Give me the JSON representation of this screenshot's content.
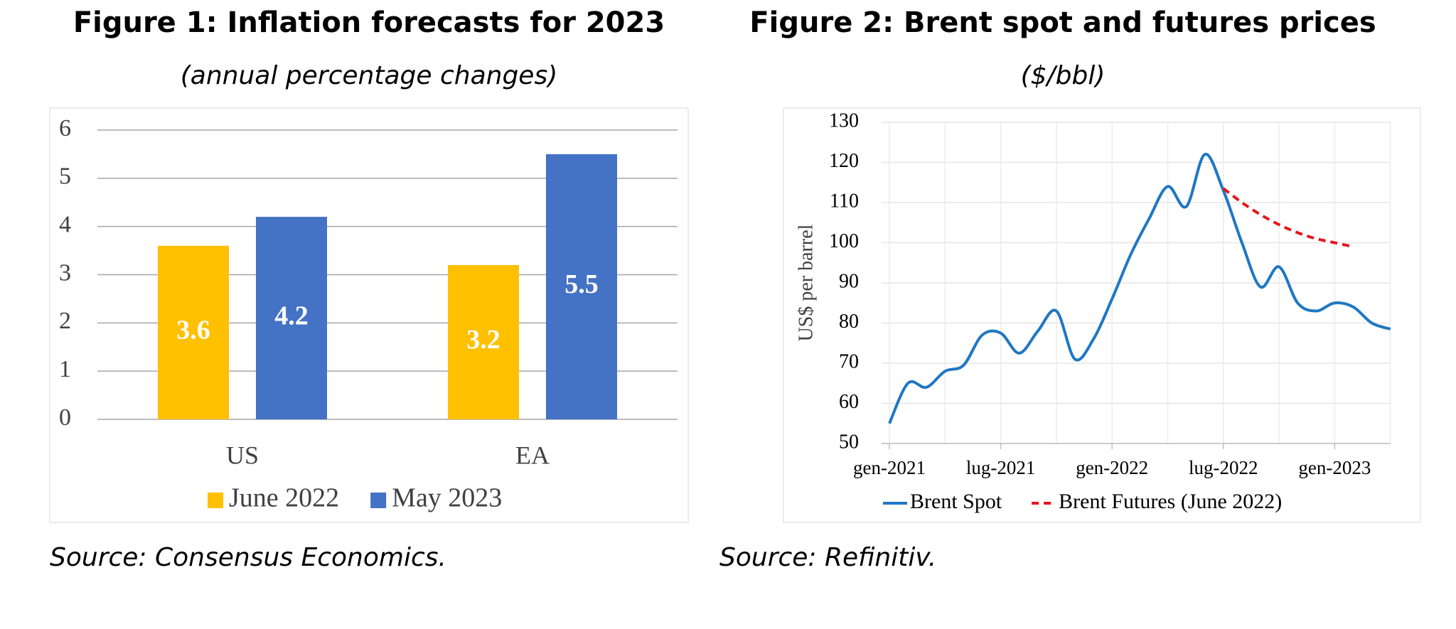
{
  "chart_data": [
    {
      "type": "bar",
      "title": "Figure 1: Inflation forecasts for 2023",
      "subtitle": "(annual percentage changes)",
      "source": "Source: Consensus Economics.",
      "categories": [
        "US",
        "EA"
      ],
      "series": [
        {
          "name": "June 2022",
          "color": "#ffc000",
          "values": [
            3.6,
            3.2
          ]
        },
        {
          "name": "May 2023",
          "color": "#4472c4",
          "values": [
            4.2,
            5.5
          ]
        }
      ],
      "ylim": [
        0,
        6
      ],
      "yticks": [
        0,
        1,
        2,
        3,
        4,
        5,
        6
      ],
      "grid": true,
      "legend": "bottom"
    },
    {
      "type": "line",
      "title": "Figure 2: Brent spot and futures prices",
      "subtitle": "($/bbl)",
      "source": "Source: Refinitiv.",
      "y_label": "US$ per barrel",
      "x": [
        "gen-2021",
        "feb-2021",
        "mar-2021",
        "apr-2021",
        "mag-2021",
        "giu-2021",
        "lug-2021",
        "ago-2021",
        "set-2021",
        "ott-2021",
        "nov-2021",
        "dic-2021",
        "gen-2022",
        "feb-2022",
        "mar-2022",
        "apr-2022",
        "mag-2022",
        "giu-2022",
        "lug-2022",
        "ago-2022",
        "set-2022",
        "ott-2022",
        "nov-2022",
        "dic-2022",
        "gen-2023",
        "feb-2023",
        "mar-2023",
        "apr-2023"
      ],
      "xticks": [
        "gen-2021",
        "lug-2021",
        "gen-2022",
        "lug-2022",
        "gen-2023"
      ],
      "series": [
        {
          "name": "Brent Spot",
          "color": "#1f77c4",
          "dash": false,
          "values": [
            55,
            65,
            64,
            68,
            69.5,
            77,
            77.5,
            72.5,
            78,
            83,
            71,
            76,
            86,
            97,
            106,
            114,
            109,
            122,
            113,
            100,
            89,
            94,
            85,
            83,
            85,
            84,
            80,
            78.5
          ]
        },
        {
          "name": "Brent Futures (June 2022)",
          "color": "#e8141c",
          "dash": true,
          "values": [
            null,
            null,
            null,
            null,
            null,
            null,
            null,
            null,
            null,
            null,
            null,
            null,
            null,
            null,
            null,
            null,
            null,
            null,
            113.5,
            110,
            107,
            104.5,
            102.5,
            101,
            100,
            99,
            null,
            null
          ]
        }
      ],
      "ylim": [
        50,
        130
      ],
      "yticks": [
        50,
        60,
        70,
        80,
        90,
        100,
        110,
        120,
        130
      ],
      "grid": true,
      "legend": "bottom"
    }
  ]
}
